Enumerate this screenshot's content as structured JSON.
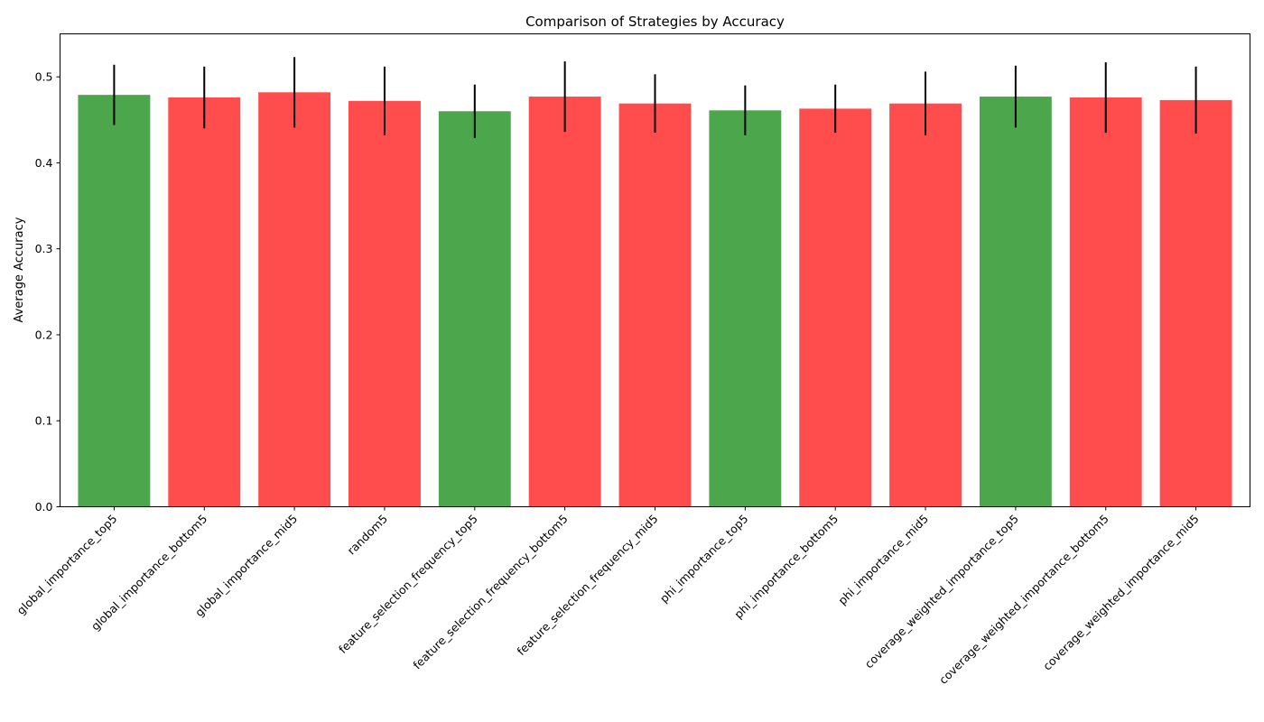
{
  "chart_data": {
    "type": "bar",
    "title": "Comparison of Strategies by Accuracy",
    "xlabel": "",
    "ylabel": "Average Accuracy",
    "ylim": [
      0,
      0.55
    ],
    "yticks": [
      0.0,
      0.1,
      0.2,
      0.3,
      0.4,
      0.5
    ],
    "grid": false,
    "legend": "none",
    "categories": [
      "global_importance_top5",
      "global_importance_bottom5",
      "global_importance_mid5",
      "random5",
      "feature_selection_frequency_top5",
      "feature_selection_frequency_bottom5",
      "feature_selection_frequency_mid5",
      "phi_importance_top5",
      "phi_importance_bottom5",
      "phi_importance_mid5",
      "coverage_weighted_importance_top5",
      "coverage_weighted_importance_bottom5",
      "coverage_weighted_importance_mid5"
    ],
    "values": [
      0.479,
      0.476,
      0.482,
      0.472,
      0.46,
      0.477,
      0.469,
      0.461,
      0.463,
      0.469,
      0.477,
      0.476,
      0.473
    ],
    "errors": [
      0.035,
      0.036,
      0.041,
      0.04,
      0.031,
      0.041,
      0.034,
      0.029,
      0.028,
      0.037,
      0.036,
      0.041,
      0.039
    ],
    "bar_colors": [
      "#4ca64c",
      "#ff4c4c",
      "#ff4c4c",
      "#ff4c4c",
      "#4ca64c",
      "#ff4c4c",
      "#ff4c4c",
      "#4ca64c",
      "#ff4c4c",
      "#ff4c4c",
      "#4ca64c",
      "#ff4c4c",
      "#ff4c4c"
    ],
    "error_color": "#000000"
  }
}
